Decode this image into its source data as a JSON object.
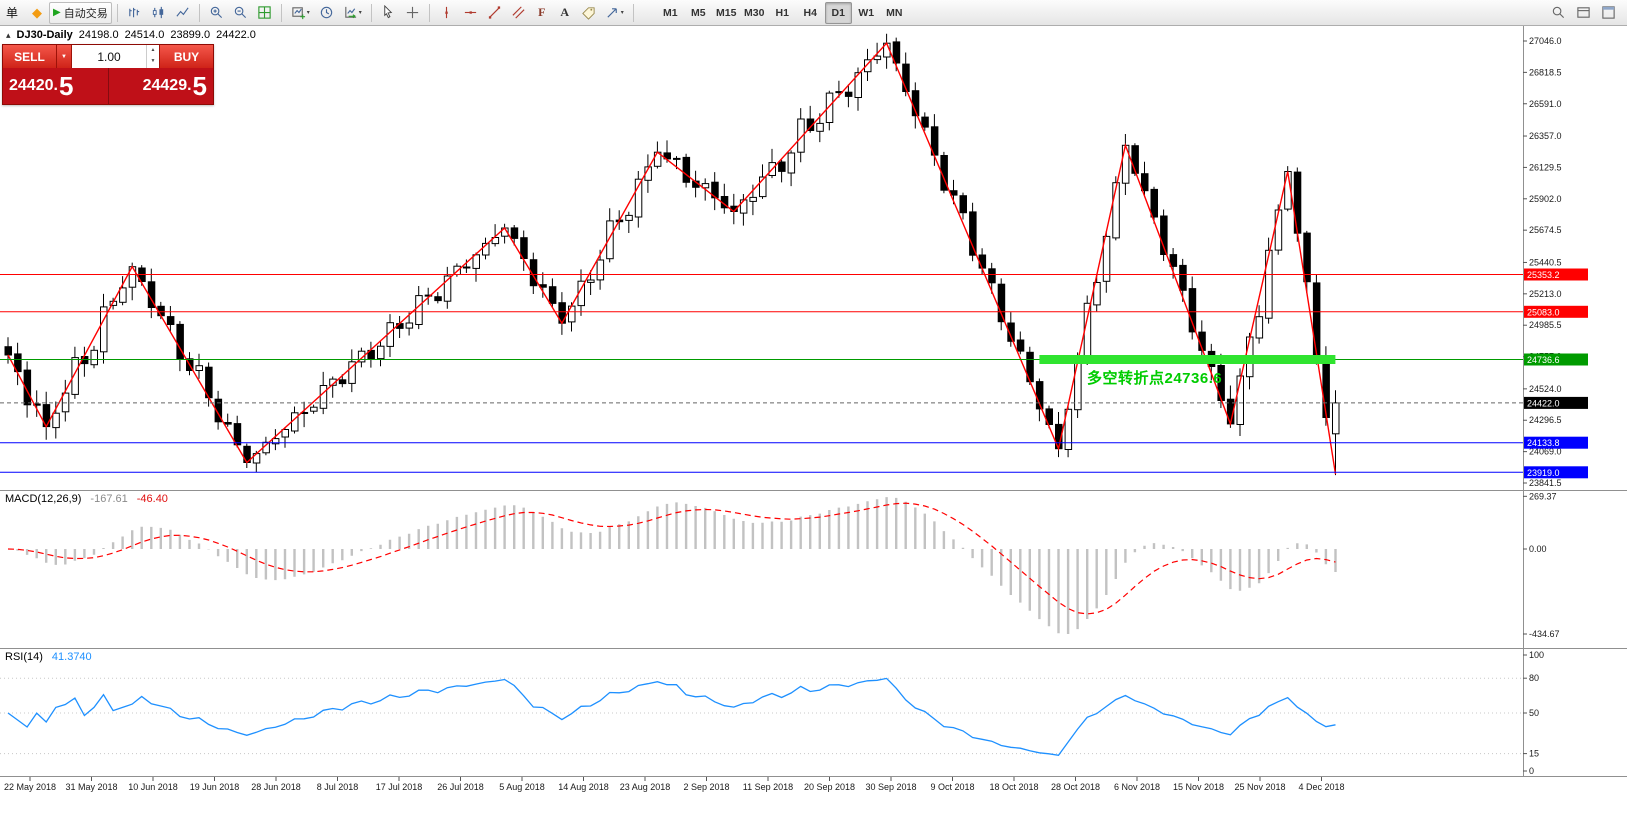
{
  "toolbar": {
    "order_label": "单",
    "autotrade_label": "自动交易",
    "timeframes": [
      "M1",
      "M5",
      "M15",
      "M30",
      "H1",
      "H4",
      "D1",
      "W1",
      "MN"
    ],
    "active_timeframe": "D1",
    "icon_glyphs": {
      "gem": "◆",
      "play": "▶",
      "caret": "▾",
      "text_tool": "A",
      "fibo": "F",
      "collapse": "▴",
      "spinner_up": "▲",
      "spinner_down": "▼",
      "dropdown": "▼"
    }
  },
  "chart_header": {
    "symbol": "DJ30-Daily",
    "open": "24198.0",
    "high": "24514.0",
    "low": "23899.0",
    "close": "24422.0"
  },
  "trade_panel": {
    "sell_label": "SELL",
    "buy_label": "BUY",
    "volume": "1.00",
    "sell_price_main": "24420.",
    "sell_price_big": "5",
    "buy_price_main": "24429.",
    "buy_price_big": "5"
  },
  "annotation": {
    "text": "多空转折点24736.6",
    "color": "#00cc00"
  },
  "indicators": {
    "macd": {
      "label": "MACD(12,26,9)",
      "main_value": "-167.61",
      "signal_value": "-46.40"
    },
    "rsi": {
      "label": "RSI(14)",
      "value": "41.3740"
    }
  },
  "chart_data": {
    "type": "candlestick",
    "symbol": "DJ30",
    "timeframe": "Daily",
    "bars": 140,
    "price_range": {
      "top": 27046.0,
      "bottom": 23841.5
    },
    "y_ticks": [
      "27046.0",
      "26818.5",
      "26591.0",
      "26357.0",
      "26129.5",
      "25902.0",
      "25674.5",
      "25440.5",
      "25213.0",
      "24985.5",
      "24757.0",
      "24524.0",
      "24296.5",
      "24069.0",
      "23841.5"
    ],
    "x_dates": [
      "22 May 2018",
      "31 May 2018",
      "10 Jun 2018",
      "19 Jun 2018",
      "28 Jun 2018",
      "8 Jul 2018",
      "17 Jul 2018",
      "26 Jul 2018",
      "5 Aug 2018",
      "14 Aug 2018",
      "23 Aug 2018",
      "2 Sep 2018",
      "11 Sep 2018",
      "20 Sep 2018",
      "30 Sep 2018",
      "9 Oct 2018",
      "18 Oct 2018",
      "28 Oct 2018",
      "6 Nov 2018",
      "15 Nov 2018",
      "25 Nov 2018",
      "4 Dec 2018"
    ],
    "zigzag_pivots": [
      {
        "i": 0,
        "p": 24770
      },
      {
        "i": 4,
        "p": 24250
      },
      {
        "i": 13,
        "p": 25410
      },
      {
        "i": 25,
        "p": 23990
      },
      {
        "i": 52,
        "p": 25690
      },
      {
        "i": 58,
        "p": 25000
      },
      {
        "i": 68,
        "p": 26240
      },
      {
        "i": 76,
        "p": 25810
      },
      {
        "i": 92,
        "p": 27030
      },
      {
        "i": 110,
        "p": 24090
      },
      {
        "i": 117,
        "p": 26290
      },
      {
        "i": 128,
        "p": 24270
      },
      {
        "i": 134,
        "p": 26100
      },
      {
        "i": 139,
        "p": 23906
      }
    ],
    "last_bar": {
      "open": 24198.0,
      "high": 24514.0,
      "low": 23899.0,
      "close": 24422.0
    },
    "hlines": [
      {
        "price": 25353.2,
        "label": "25353.2",
        "color": "#ff0000"
      },
      {
        "price": 25083.0,
        "label": "25083.0",
        "color": "#ff0000"
      },
      {
        "price": 24736.6,
        "label": "24736.6",
        "color": "#009b00",
        "thick": {
          "from_bar": 108,
          "to_bar": 139,
          "color": "#2fe42f",
          "height": 9
        }
      },
      {
        "price": 24133.8,
        "label": "24133.8",
        "color": "#0000ff"
      },
      {
        "price": 23919.0,
        "label": "23919.0",
        "color": "#0000ff"
      }
    ],
    "current_price": {
      "value": 24422.0,
      "label": "24422.0",
      "color": "#000000"
    },
    "macd_axis": [
      {
        "v": 269.37,
        "t": "269.37"
      },
      {
        "v": 0,
        "t": "0.00"
      },
      {
        "v": -434.67,
        "t": "-434.67"
      }
    ],
    "rsi_axis": [
      {
        "v": 100,
        "t": "100"
      },
      {
        "v": 80,
        "t": "80"
      },
      {
        "v": 50,
        "t": "50"
      },
      {
        "v": 15,
        "t": "15"
      },
      {
        "v": 0,
        "t": "0"
      }
    ],
    "rsi_levels": [
      80,
      50,
      15
    ],
    "annotation_anchor": {
      "bar": 113,
      "price": 24680
    }
  }
}
